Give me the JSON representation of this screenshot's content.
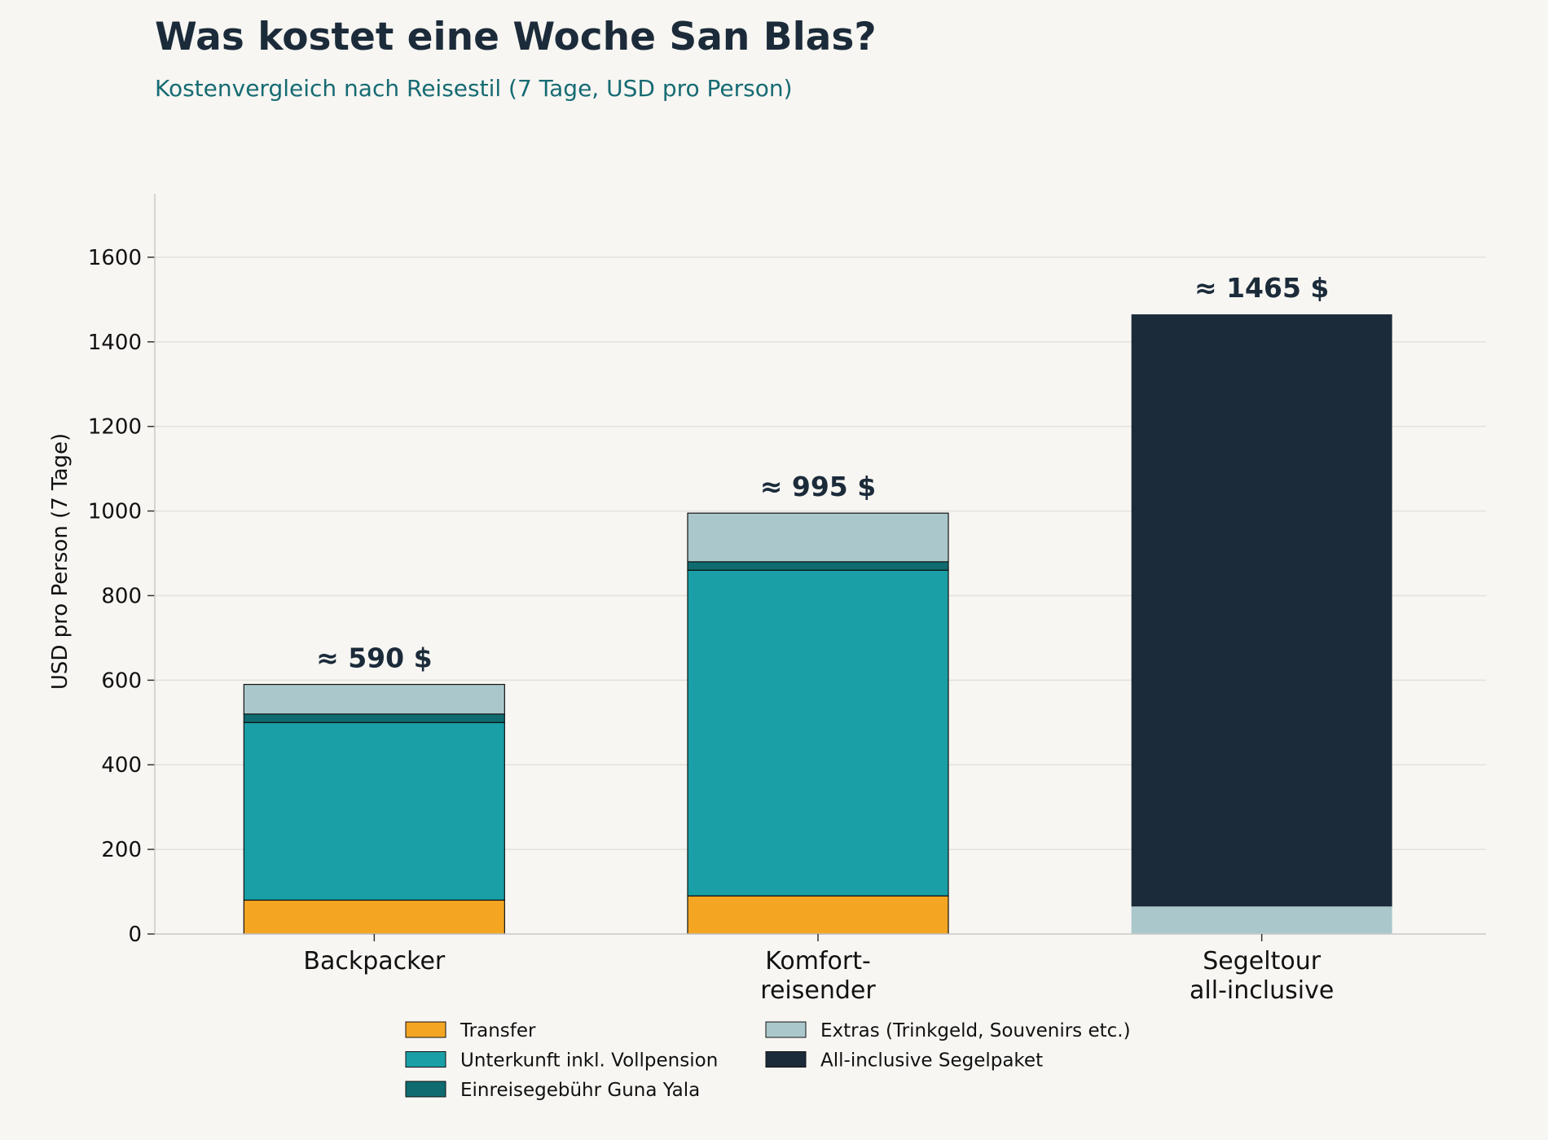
{
  "title": "Was kostet eine Woche San Blas?",
  "subtitle": "Kostenvergleich nach Reisestil (7 Tage, USD pro Person)",
  "colors": {
    "background": "#f7f6f2",
    "title": "#1c2b3a",
    "subtitle": "#166b73",
    "grid": "#e3e1dc",
    "Transfer": "#f4a623",
    "Unterkunft inkl. Vollpension": "#1a9fa6",
    "Einreisegebühr Guna Yala": "#0f6b70",
    "Extras (Trinkgeld, Souvenirs etc.)": "#aac8cb",
    "All-inclusive Segelpaket": "#1c2b3a"
  },
  "chart_data": {
    "type": "bar",
    "stacked": true,
    "title": "Was kostet eine Woche San Blas?",
    "subtitle": "Kostenvergleich nach Reisestil (7 Tage, USD pro Person)",
    "xlabel": "",
    "ylabel": "USD pro Person (7 Tage)",
    "ylim": [
      0,
      1750
    ],
    "yticks": [
      0,
      200,
      400,
      600,
      800,
      1000,
      1200,
      1400,
      1600
    ],
    "grid": "horizontal",
    "legend_position": "bottom",
    "categories": [
      [
        "Backpacker"
      ],
      [
        "Komfort-",
        "reisender"
      ],
      [
        "Segeltour",
        "all-inclusive"
      ]
    ],
    "series": [
      {
        "name": "Transfer",
        "values": [
          80,
          90,
          0
        ]
      },
      {
        "name": "Unterkunft inkl. Vollpension",
        "values": [
          420,
          770,
          0
        ]
      },
      {
        "name": "Einreisegebühr Guna Yala",
        "values": [
          20,
          20,
          0
        ]
      },
      {
        "name": "Extras (Trinkgeld, Souvenirs etc.)",
        "values": [
          70,
          115,
          65
        ]
      },
      {
        "name": "All-inclusive Segelpaket",
        "values": [
          0,
          0,
          1400
        ]
      }
    ],
    "totals": [
      590,
      995,
      1465
    ],
    "total_labels": [
      "≈ 590 $",
      "≈ 995 $",
      "≈ 1465 $"
    ],
    "legend": [
      "Transfer",
      "Extras (Trinkgeld, Souvenirs etc.)",
      "Unterkunft inkl. Vollpension",
      "All-inclusive Segelpaket",
      "Einreisegebühr Guna Yala"
    ]
  }
}
